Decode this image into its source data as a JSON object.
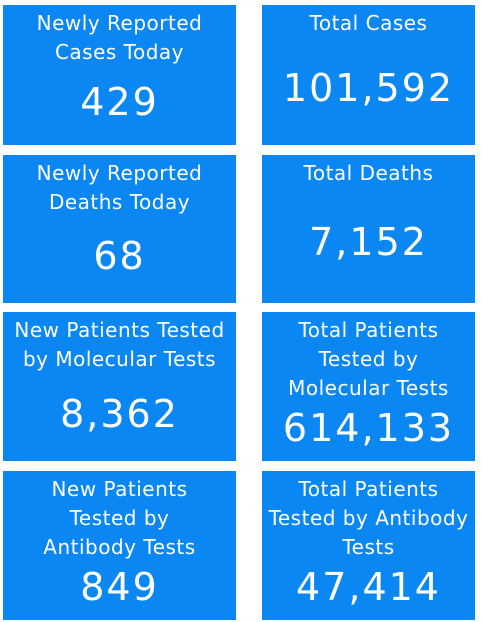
{
  "tiles": [
    {
      "label": "Newly Reported Cases Today",
      "value": "429"
    },
    {
      "label": "Total Cases",
      "value": "101,592"
    },
    {
      "label": "Newly Reported Deaths Today",
      "value": "68"
    },
    {
      "label": "Total Deaths",
      "value": "7,152"
    },
    {
      "label": "New Patients Tested by Molecular Tests",
      "value": "8,362"
    },
    {
      "label": "Total Patients Tested by Molecular Tests",
      "value": "614,133"
    },
    {
      "label": "New Patients Tested by Antibody Tests",
      "value": "849"
    },
    {
      "label": "Total Patients Tested by Antibody Tests",
      "value": "47,414"
    }
  ]
}
